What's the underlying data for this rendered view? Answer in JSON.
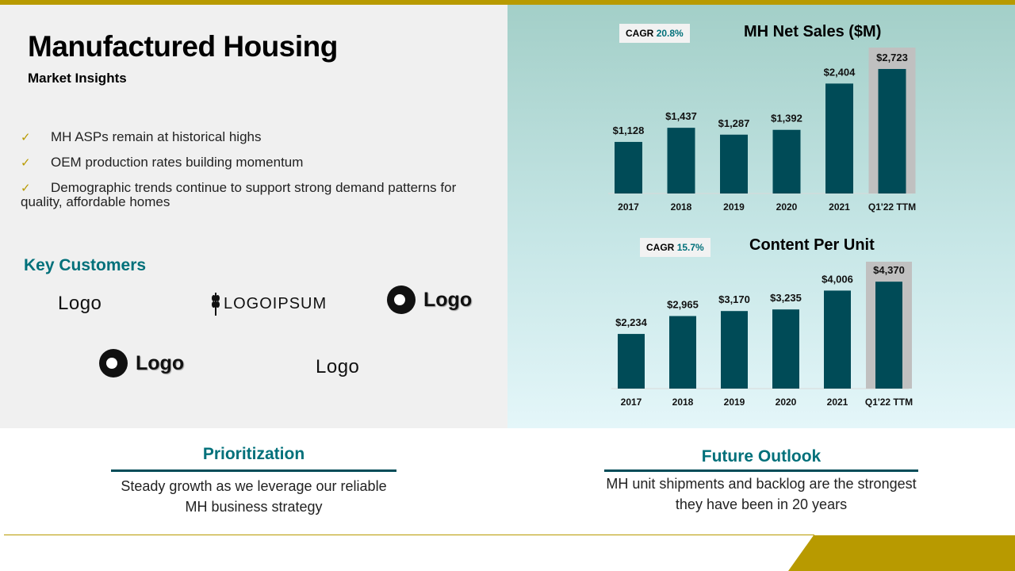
{
  "colors": {
    "gold": "#b89a00",
    "teal": "#004b57",
    "teal_text": "#00707a",
    "highlight": "#c0c0c0"
  },
  "header": {
    "title": "Manufactured Housing",
    "subtitle": "Market Insights"
  },
  "bullets": [
    {
      "icon": "check-icon",
      "text": "MH ASPs remain at historical highs"
    },
    {
      "icon": "check-icon",
      "text": "OEM production rates building momentum"
    },
    {
      "icon": "check-icon",
      "text": "Demographic trends continue to support strong  demand patterns for quality, affordable homes"
    }
  ],
  "check_symbol": "✓",
  "customers": {
    "heading": "Key Customers",
    "logos": [
      "Logo",
      "LOGOIPSUM",
      "Logo",
      "Logo",
      "Logo"
    ]
  },
  "chart_data": [
    {
      "type": "bar",
      "title": "MH Net Sales ($M)",
      "badge_label": "CAGR",
      "badge_value": "20.8%",
      "categories": [
        "2017",
        "2018",
        "2019",
        "2020",
        "2021",
        "Q1'22 TTM"
      ],
      "values": [
        1128,
        1437,
        1287,
        1392,
        2404,
        2723
      ],
      "value_labels": [
        "$1,128",
        "$1,437",
        "$1,287",
        "$1,392",
        "$2,404",
        "$2,723"
      ],
      "highlight_category": "Q1'22 TTM",
      "ylim": [
        0,
        3000
      ]
    },
    {
      "type": "bar",
      "title": "Content Per Unit",
      "badge_label": "CAGR",
      "badge_value": "15.7%",
      "categories": [
        "2017",
        "2018",
        "2019",
        "2020",
        "2021",
        "Q1'22 TTM"
      ],
      "values": [
        2234,
        2965,
        3170,
        3235,
        4006,
        4370
      ],
      "value_labels": [
        "$2,234",
        "$2,965",
        "$3,170",
        "$3,235",
        "$4,006",
        "$4,370"
      ],
      "highlight_category": "Q1'22 TTM",
      "ylim": [
        0,
        4700
      ]
    }
  ],
  "prioritization": {
    "title": "Prioritization",
    "text": "Steady growth as we leverage our reliable MH business strategy"
  },
  "outlook": {
    "title": "Future Outlook",
    "text": "MH unit shipments and backlog are the strongest they have been  in 20 years"
  }
}
